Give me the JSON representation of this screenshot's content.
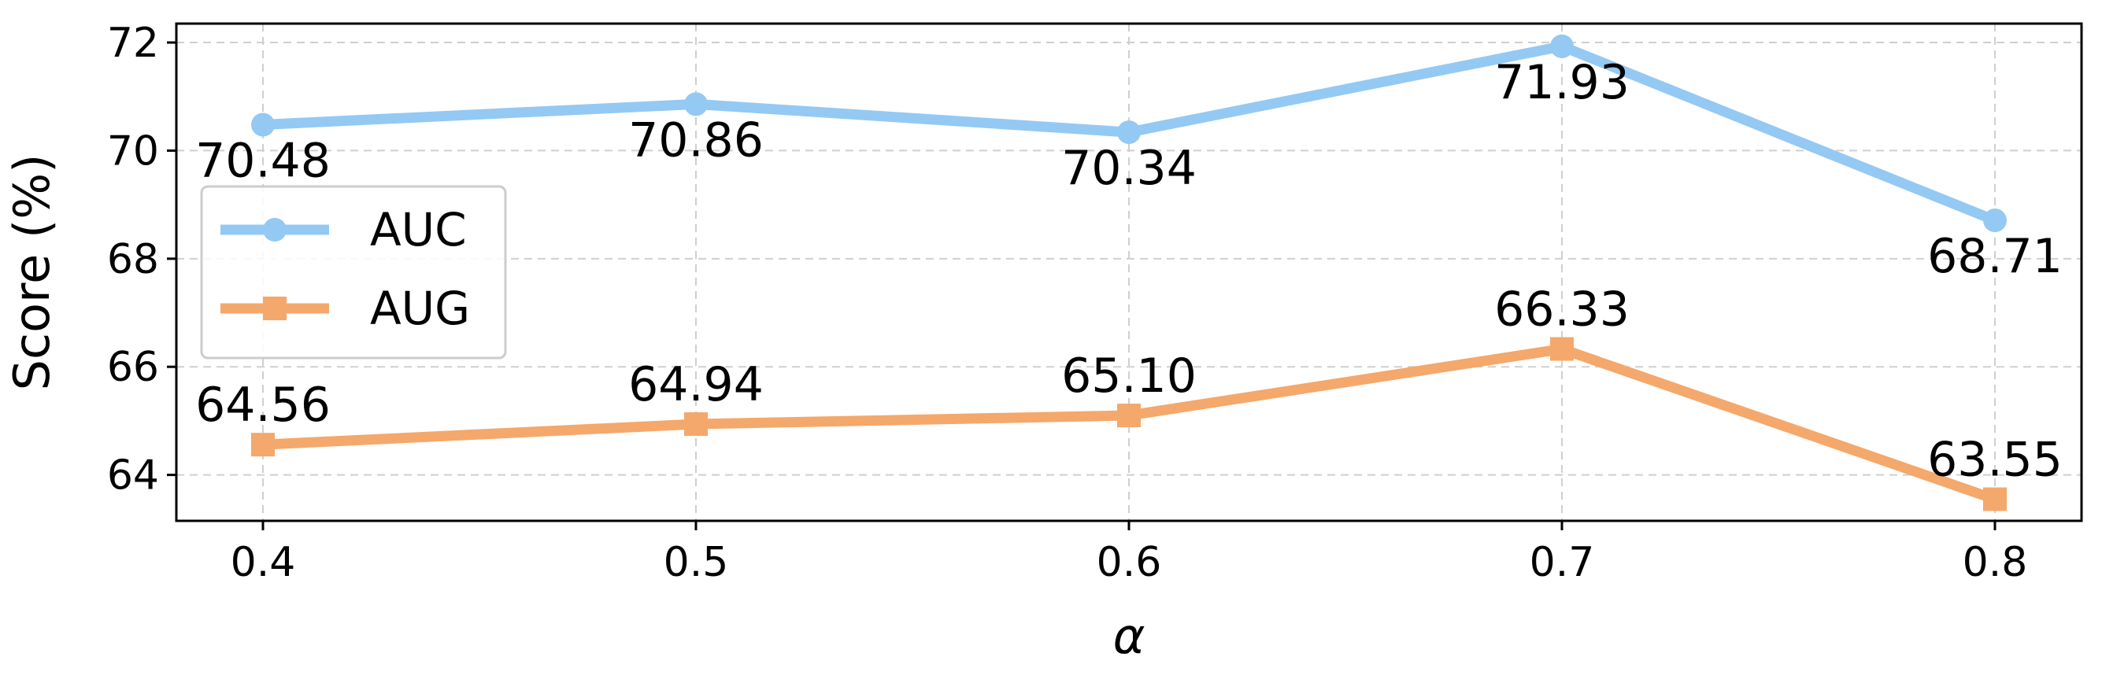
{
  "chart_data": {
    "type": "line",
    "xlabel": "α",
    "ylabel": "Score (%)",
    "x": [
      "0.4",
      "0.5",
      "0.6",
      "0.7",
      "0.8"
    ],
    "x_values": [
      0.4,
      0.5,
      0.6,
      0.7,
      0.8
    ],
    "xlim": [
      0.38,
      0.82
    ],
    "ylim": [
      63.15,
      72.35
    ],
    "yticks": [
      "64",
      "66",
      "68",
      "70",
      "72"
    ],
    "ytick_values": [
      64,
      66,
      68,
      70,
      72
    ],
    "grid": true,
    "legend_position": "center-left",
    "series": [
      {
        "name": "AUC",
        "color": "#94c9f3",
        "marker": "circle",
        "values": [
          70.48,
          70.86,
          70.34,
          71.93,
          68.71
        ],
        "labels": [
          "70.48",
          "70.86",
          "70.34",
          "71.93",
          "68.71"
        ],
        "label_position": "below"
      },
      {
        "name": "AUG",
        "color": "#f4a86b",
        "marker": "square",
        "values": [
          64.56,
          64.94,
          65.1,
          66.33,
          63.55
        ],
        "labels": [
          "64.56",
          "64.94",
          "65.10",
          "66.33",
          "63.55"
        ],
        "label_position": "above"
      }
    ]
  }
}
